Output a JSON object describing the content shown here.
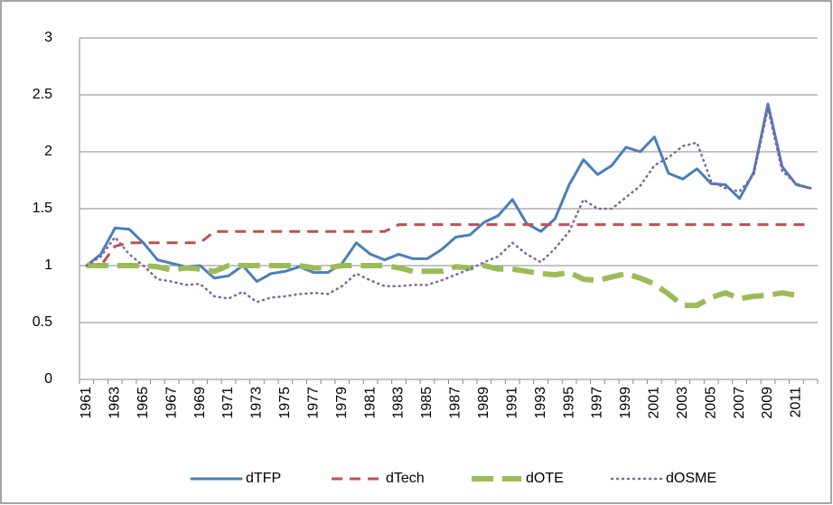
{
  "chart_data": {
    "type": "line",
    "categories": [
      "1961",
      null,
      "1963",
      null,
      "1965",
      null,
      "1967",
      null,
      "1969",
      null,
      "1971",
      null,
      "1973",
      null,
      "1975",
      null,
      "1977",
      null,
      "1979",
      null,
      "1981",
      null,
      "1983",
      null,
      "1985",
      null,
      "1987",
      null,
      "1989",
      null,
      "1991",
      null,
      "1993",
      null,
      "1995",
      null,
      "1997",
      null,
      "1999",
      null,
      "2001",
      null,
      "2003",
      null,
      "2005",
      null,
      "2007",
      null,
      "2009",
      null,
      "2011",
      null
    ],
    "series": [
      {
        "name": "dTFP",
        "color": "#4a7ebb",
        "dash": "solid",
        "values": [
          1.0,
          1.1,
          1.33,
          1.32,
          1.2,
          1.05,
          1.02,
          0.99,
          1.0,
          0.89,
          0.91,
          1.0,
          0.86,
          0.93,
          0.95,
          0.99,
          0.94,
          0.94,
          1.02,
          1.2,
          1.1,
          1.05,
          1.1,
          1.06,
          1.06,
          1.14,
          1.25,
          1.27,
          1.38,
          1.44,
          1.58,
          1.37,
          1.3,
          1.41,
          1.71,
          1.93,
          1.8,
          1.88,
          2.04,
          2.0,
          2.13,
          1.81,
          1.76,
          1.85,
          1.72,
          1.71,
          1.59,
          1.82,
          2.42,
          1.87,
          1.71,
          1.68
        ]
      },
      {
        "name": "dTech",
        "color": "#c0504d",
        "dash": "dashed",
        "values": [
          1.0,
          1.0,
          1.17,
          1.2,
          1.2,
          1.2,
          1.2,
          1.2,
          1.2,
          1.3,
          1.3,
          1.3,
          1.3,
          1.3,
          1.3,
          1.3,
          1.3,
          1.3,
          1.3,
          1.3,
          1.3,
          1.3,
          1.36,
          1.36,
          1.36,
          1.36,
          1.36,
          1.36,
          1.36,
          1.36,
          1.36,
          1.36,
          1.36,
          1.36,
          1.36,
          1.36,
          1.36,
          1.36,
          1.36,
          1.36,
          1.36,
          1.36,
          1.36,
          1.36,
          1.36,
          1.36,
          1.36,
          1.36,
          1.36,
          1.36,
          1.36,
          1.36
        ]
      },
      {
        "name": "dOTE",
        "color": "#9bbb59",
        "dash": "long-dash",
        "values": [
          1.0,
          1.0,
          1.0,
          1.0,
          1.0,
          0.99,
          0.96,
          0.98,
          0.97,
          0.95,
          1.0,
          1.0,
          1.0,
          1.0,
          1.0,
          1.0,
          0.98,
          0.98,
          1.0,
          1.0,
          1.0,
          1.0,
          0.98,
          0.95,
          0.95,
          0.95,
          0.99,
          0.98,
          1.0,
          0.97,
          0.97,
          0.95,
          0.93,
          0.92,
          0.94,
          0.88,
          0.87,
          0.9,
          0.93,
          0.89,
          0.84,
          0.75,
          0.65,
          0.65,
          0.72,
          0.76,
          0.71,
          0.73,
          0.74,
          0.76,
          0.74,
          null
        ]
      },
      {
        "name": "dOSME",
        "color": "#8064a2",
        "dash": "dotted",
        "values": [
          1.0,
          1.08,
          1.25,
          1.1,
          1.0,
          0.88,
          0.86,
          0.83,
          0.84,
          0.73,
          0.71,
          0.77,
          0.68,
          0.72,
          0.73,
          0.75,
          0.76,
          0.75,
          0.82,
          0.93,
          0.87,
          0.82,
          0.82,
          0.83,
          0.83,
          0.87,
          0.92,
          0.97,
          1.03,
          1.08,
          1.2,
          1.1,
          1.03,
          1.15,
          1.3,
          1.58,
          1.5,
          1.5,
          1.6,
          1.7,
          1.88,
          1.95,
          2.05,
          2.08,
          1.74,
          1.68,
          1.65,
          1.8,
          2.38,
          1.83,
          1.72,
          1.68
        ]
      }
    ],
    "ylim": [
      0,
      3
    ],
    "yticks": [
      0,
      0.5,
      1,
      1.5,
      2,
      2.5,
      3
    ],
    "grid": true,
    "legend": "bottom"
  }
}
